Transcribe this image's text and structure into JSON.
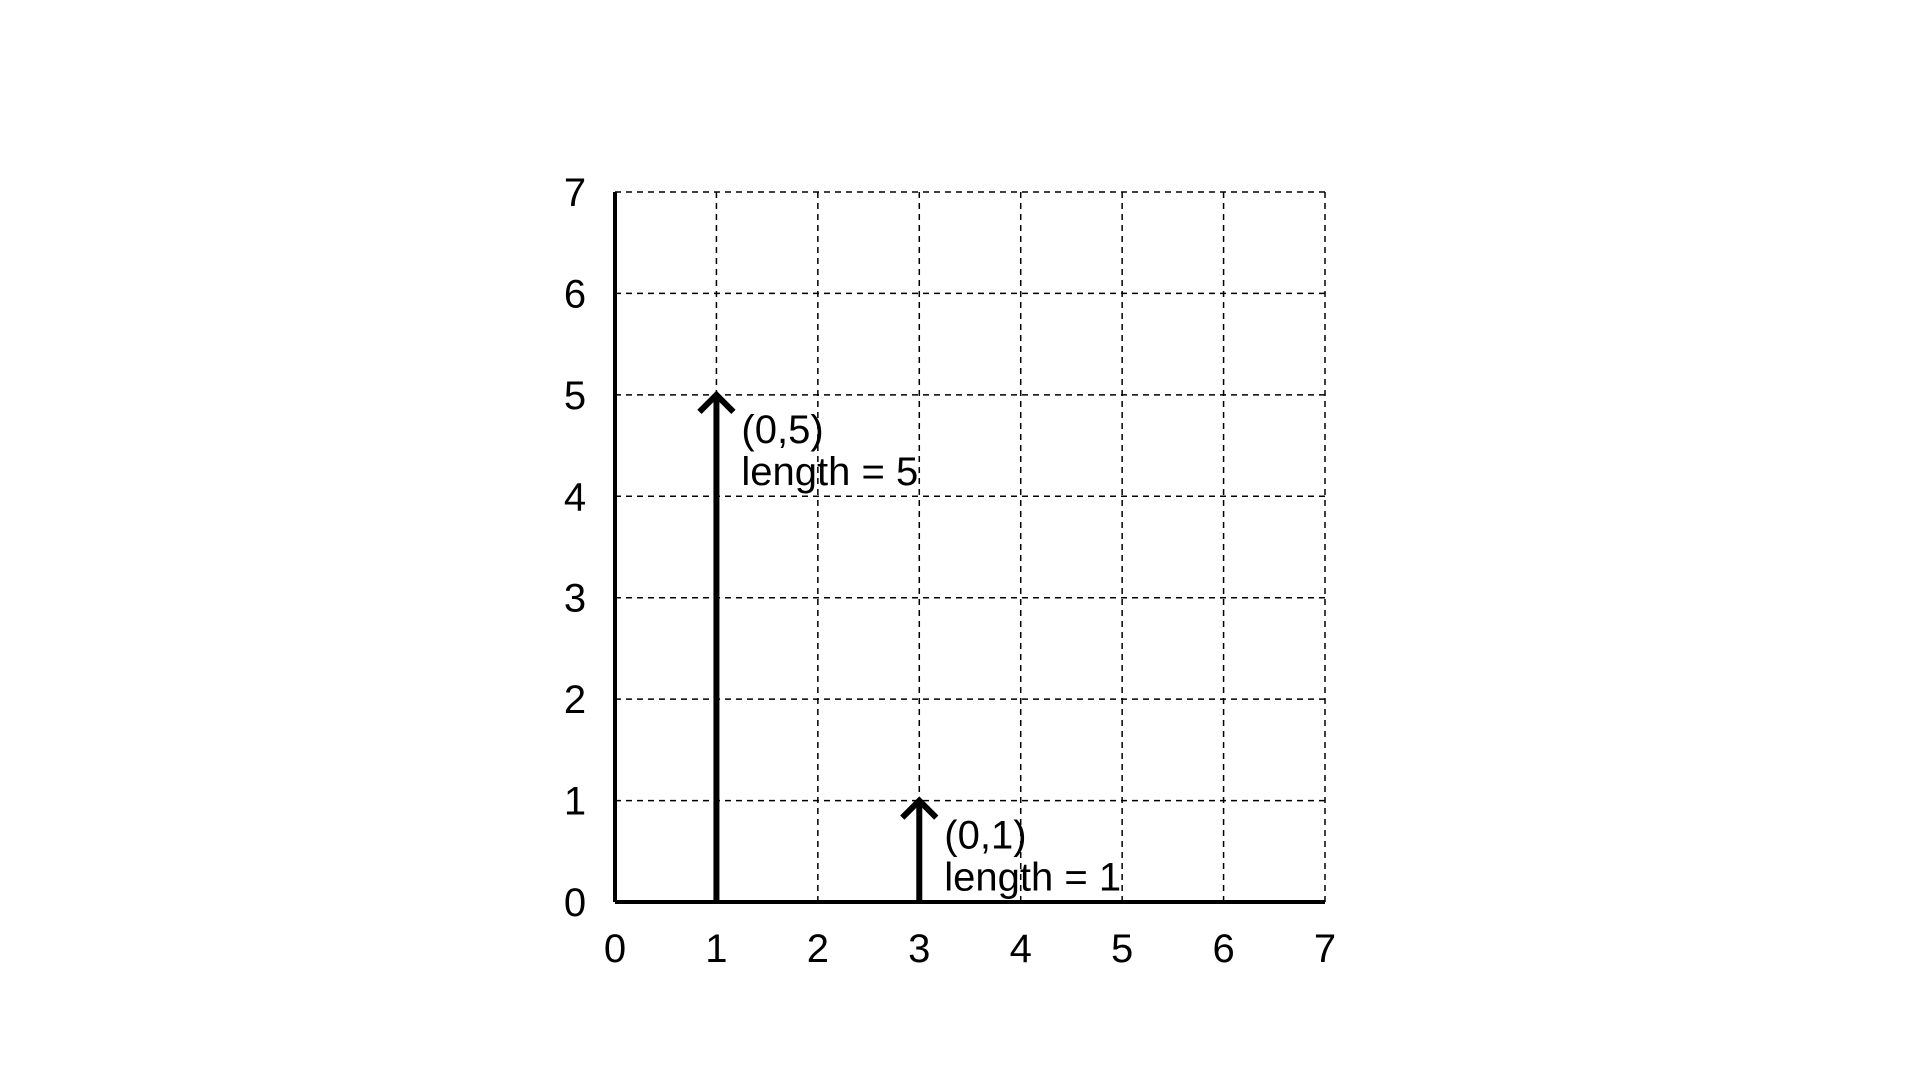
{
  "diagram": {
    "x_range": [
      0,
      7
    ],
    "y_range": [
      0,
      7
    ],
    "grid": true,
    "x_ticks": [
      "0",
      "1",
      "2",
      "3",
      "4",
      "5",
      "6",
      "7"
    ],
    "y_ticks": [
      "0",
      "1",
      "2",
      "3",
      "4",
      "5",
      "6",
      "7"
    ],
    "vectors": [
      {
        "base_x": 1,
        "base_y": 0,
        "dx": 0,
        "dy": 5,
        "label_line1": "(0,5)",
        "label_line2": "length = 5"
      },
      {
        "base_x": 3,
        "base_y": 0,
        "dx": 0,
        "dy": 1,
        "label_line1": "(0,1)",
        "label_line2": "length = 1"
      }
    ]
  }
}
